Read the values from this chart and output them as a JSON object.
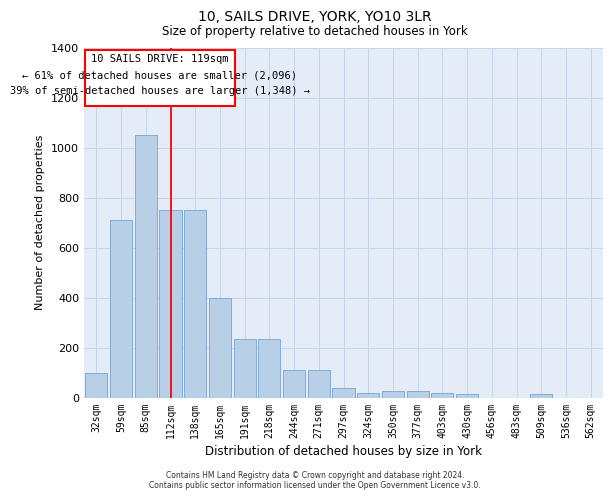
{
  "title1": "10, SAILS DRIVE, YORK, YO10 3LR",
  "title2": "Size of property relative to detached houses in York",
  "xlabel": "Distribution of detached houses by size in York",
  "ylabel": "Number of detached properties",
  "categories": [
    "32sqm",
    "59sqm",
    "85sqm",
    "112sqm",
    "138sqm",
    "165sqm",
    "191sqm",
    "218sqm",
    "244sqm",
    "271sqm",
    "297sqm",
    "324sqm",
    "350sqm",
    "377sqm",
    "403sqm",
    "430sqm",
    "456sqm",
    "483sqm",
    "509sqm",
    "536sqm",
    "562sqm"
  ],
  "values": [
    100,
    710,
    1050,
    750,
    750,
    400,
    235,
    235,
    110,
    110,
    40,
    20,
    25,
    25,
    20,
    15,
    0,
    0,
    15,
    0,
    0
  ],
  "bar_color": "#b8cfe8",
  "bar_edge_color": "#6699cc",
  "grid_color": "#c8d4e8",
  "background_color": "#e4ecf7",
  "ann_line1": "10 SAILS DRIVE: 119sqm",
  "ann_line2": "← 61% of detached houses are smaller (2,096)",
  "ann_line3": "39% of semi-detached houses are larger (1,348) →",
  "ylim": [
    0,
    1400
  ],
  "yticks": [
    0,
    200,
    400,
    600,
    800,
    1000,
    1200,
    1400
  ],
  "footer1": "Contains HM Land Registry data © Crown copyright and database right 2024.",
  "footer2": "Contains public sector information licensed under the Open Government Licence v3.0.",
  "red_line_x": 3.0
}
